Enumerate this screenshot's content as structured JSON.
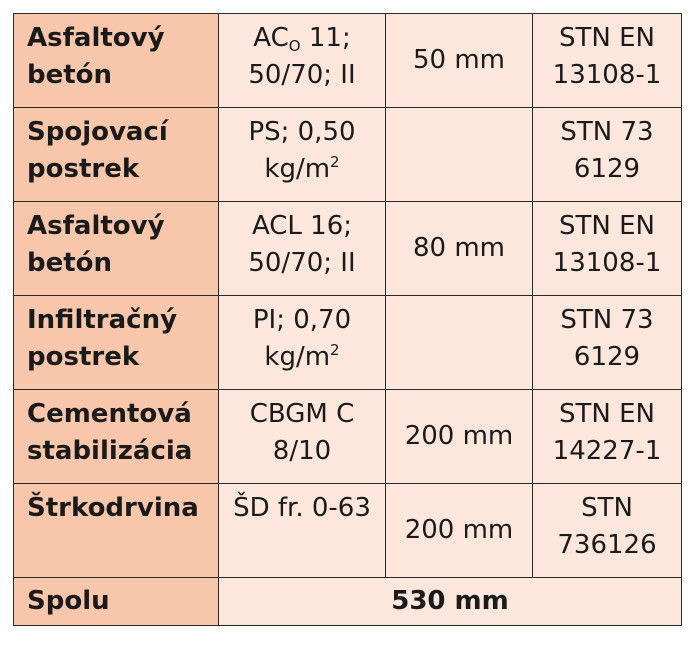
{
  "rows": [
    {
      "name_lines": [
        "Asfaltový",
        "betón"
      ],
      "spec_main": "AC",
      "spec_sub": "O",
      "spec_rest": " 11;",
      "spec_line2": "50/70; II",
      "thickness": "50 mm",
      "standard_lines": [
        "STN EN",
        "13108-1"
      ]
    },
    {
      "name_lines": [
        "Spojovací",
        "postrek"
      ],
      "spec_line1": "PS; 0,50",
      "spec_unit": "kg/m",
      "spec_sup": "2",
      "thickness": "",
      "standard_lines": [
        "STN 73",
        "6129"
      ]
    },
    {
      "name_lines": [
        "Asfaltový",
        "betón"
      ],
      "spec_lines": [
        "ACL 16;",
        "50/70; II"
      ],
      "thickness": "80 mm",
      "standard_lines": [
        "STN EN",
        "13108-1"
      ]
    },
    {
      "name_lines": [
        "Infiltračný",
        "postrek"
      ],
      "spec_line1": "PI; 0,70",
      "spec_unit": "kg/m",
      "spec_sup": "2",
      "thickness": "",
      "standard_lines": [
        "STN 73",
        "6129"
      ]
    },
    {
      "name_lines": [
        "Cementová",
        "stabilizácia"
      ],
      "spec_lines": [
        "CBGM C",
        "8/10"
      ],
      "thickness": "200 mm",
      "standard_lines": [
        "STN EN",
        "14227-1"
      ]
    },
    {
      "name_lines": [
        "Štrkodrvina"
      ],
      "spec_lines": [
        "ŠD fr. 0-63"
      ],
      "thickness": "200 mm",
      "standard_lines": [
        "STN",
        "736126"
      ]
    }
  ],
  "total": {
    "label": "Spolu",
    "value": "530 mm"
  },
  "colors": {
    "label_bg": "#f8c6aa",
    "cell_bg": "#fde6dc",
    "border": "#2a2a2a"
  }
}
